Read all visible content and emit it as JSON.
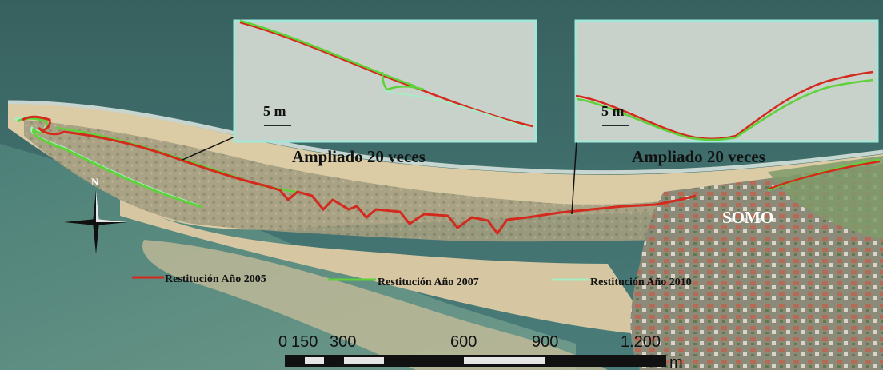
{
  "insets": [
    {
      "scale_label": "5 m",
      "caption": "Ampliado 20 veces"
    },
    {
      "scale_label": "5 m",
      "caption": "Ampliado 20 veces"
    }
  ],
  "place_label": "SOMO",
  "north_label": "N",
  "legend": [
    {
      "label": "Restitución Año 2005",
      "color": "#d42a1e"
    },
    {
      "label": "Restitución Año 2007",
      "color": "#5fd13a"
    },
    {
      "label": "Restitución Año 2010",
      "color": "#a8ecc4"
    }
  ],
  "scalebar": {
    "ticks": [
      "0",
      "150",
      "300",
      "600",
      "900",
      "1.200"
    ],
    "unit": "m"
  },
  "colors": {
    "sea": "#3d6b6a",
    "sand": "#d8c9a6",
    "dune": "#9a9478",
    "inset_fill": "#c9d3cc",
    "inset_border": "#9fe8da"
  }
}
